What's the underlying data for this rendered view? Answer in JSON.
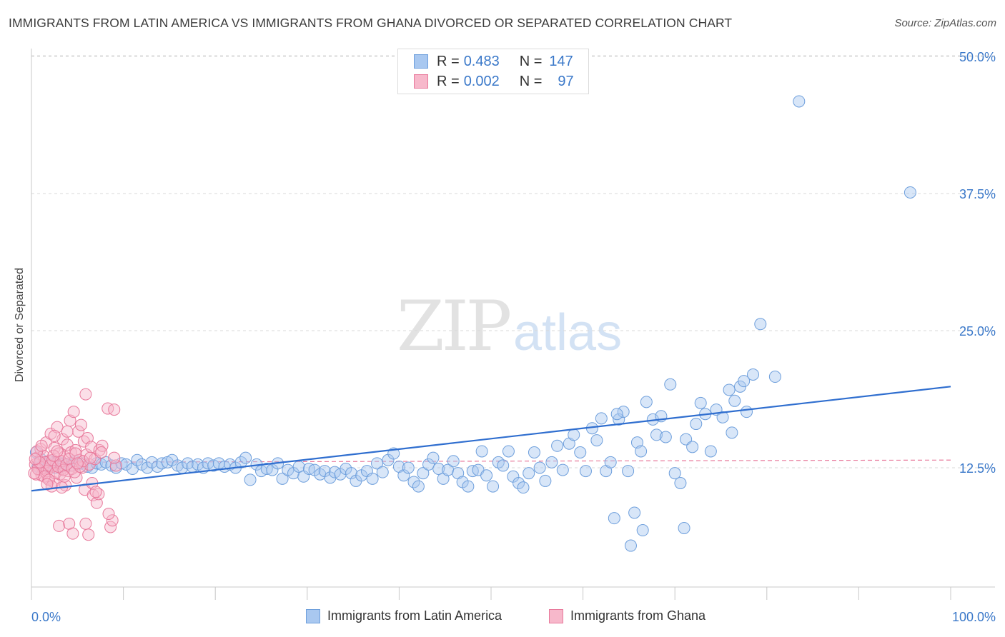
{
  "title": "IMMIGRANTS FROM LATIN AMERICA VS IMMIGRANTS FROM GHANA DIVORCED OR SEPARATED CORRELATION CHART",
  "source": "Source: ZipAtlas.com",
  "watermark": {
    "zip": "ZIP",
    "atlas": "atlas"
  },
  "legend": {
    "rows": [
      {
        "r_label": "R = ",
        "r_value": "0.483",
        "n_label": "N = ",
        "n_value": "147",
        "color": "#a9c8f0",
        "border": "#6e9fdc"
      },
      {
        "r_label": "R = ",
        "r_value": "0.002",
        "n_label": "N = ",
        "n_value": "97",
        "color": "#f7b8cb",
        "border": "#e8799b"
      }
    ]
  },
  "bottom_legend": [
    {
      "label": "Immigrants from Latin America",
      "color": "#a9c8f0",
      "border": "#6e9fdc"
    },
    {
      "label": "Immigrants from Ghana",
      "color": "#f7b8cb",
      "border": "#e8799b"
    }
  ],
  "chart_data": {
    "type": "scatter",
    "title": "IMMIGRANTS FROM LATIN AMERICA VS IMMIGRANTS FROM GHANA DIVORCED OR SEPARATED CORRELATION CHART",
    "ylabel": "Divorced or Separated",
    "xlabel": "",
    "x_tick_labels": [
      "0.0%",
      "100.0%"
    ],
    "y_tick_labels": [
      "12.5%",
      "25.0%",
      "37.5%",
      "50.0%"
    ],
    "xlim": [
      0,
      100
    ],
    "ylim": [
      2.5,
      52
    ],
    "grid": "horizontal dashed",
    "legend_placement": "top-center",
    "colors": {
      "latin": "#6e9fdc",
      "ghana": "#e8799b",
      "latin_line": "#2f6ecf",
      "ghana_line": "#e8799b"
    },
    "series": [
      {
        "name": "Immigrants from Latin America",
        "r": 0.483,
        "n": 147,
        "trend": {
          "x": [
            0,
            100
          ],
          "y": [
            10.4,
            19.9
          ]
        },
        "points": [
          [
            0.5,
            13.9
          ],
          [
            0.7,
            12.6
          ],
          [
            0.9,
            12.9
          ],
          [
            1.0,
            13.3
          ],
          [
            1.2,
            12.7
          ],
          [
            1.5,
            12.8
          ],
          [
            1.8,
            12.6
          ],
          [
            2.0,
            13.1
          ],
          [
            2.3,
            12.9
          ],
          [
            2.6,
            12.5
          ],
          [
            2.9,
            13.0
          ],
          [
            3.2,
            12.6
          ],
          [
            3.5,
            12.9
          ],
          [
            3.9,
            12.8
          ],
          [
            4.3,
            12.7
          ],
          [
            4.7,
            13.1
          ],
          [
            5.1,
            12.8
          ],
          [
            5.6,
            12.9
          ],
          [
            6.1,
            12.6
          ],
          [
            6.6,
            12.5
          ],
          [
            7.1,
            12.9
          ],
          [
            7.6,
            12.8
          ],
          [
            8.1,
            13.0
          ],
          [
            8.7,
            12.7
          ],
          [
            9.2,
            12.5
          ],
          [
            9.8,
            12.9
          ],
          [
            10.3,
            12.8
          ],
          [
            11.0,
            12.4
          ],
          [
            11.5,
            13.2
          ],
          [
            12.0,
            12.8
          ],
          [
            12.6,
            12.5
          ],
          [
            13.1,
            13.0
          ],
          [
            13.7,
            12.6
          ],
          [
            14.2,
            12.9
          ],
          [
            14.8,
            13.0
          ],
          [
            15.3,
            13.2
          ],
          [
            15.9,
            12.7
          ],
          [
            16.4,
            12.5
          ],
          [
            17.0,
            12.9
          ],
          [
            17.5,
            12.6
          ],
          [
            18.1,
            12.8
          ],
          [
            18.7,
            12.5
          ],
          [
            19.2,
            12.9
          ],
          [
            19.8,
            12.7
          ],
          [
            20.4,
            12.9
          ],
          [
            21.0,
            12.6
          ],
          [
            21.6,
            12.8
          ],
          [
            22.2,
            12.5
          ],
          [
            22.8,
            13.0
          ],
          [
            23.3,
            13.4
          ],
          [
            23.8,
            11.4
          ],
          [
            24.5,
            12.8
          ],
          [
            25.0,
            12.2
          ],
          [
            25.6,
            12.4
          ],
          [
            26.2,
            12.3
          ],
          [
            26.8,
            12.9
          ],
          [
            27.3,
            11.5
          ],
          [
            27.9,
            12.3
          ],
          [
            28.5,
            12.0
          ],
          [
            29.1,
            12.6
          ],
          [
            29.6,
            11.7
          ],
          [
            30.2,
            12.4
          ],
          [
            30.8,
            12.3
          ],
          [
            31.4,
            11.9
          ],
          [
            31.9,
            12.2
          ],
          [
            32.5,
            11.6
          ],
          [
            33.0,
            12.1
          ],
          [
            33.6,
            11.9
          ],
          [
            34.2,
            12.4
          ],
          [
            34.8,
            12.0
          ],
          [
            35.3,
            11.3
          ],
          [
            35.9,
            11.8
          ],
          [
            36.5,
            12.2
          ],
          [
            37.1,
            11.5
          ],
          [
            37.6,
            12.9
          ],
          [
            38.2,
            12.1
          ],
          [
            38.8,
            13.2
          ],
          [
            39.4,
            13.8
          ],
          [
            40.0,
            12.6
          ],
          [
            40.5,
            11.8
          ],
          [
            41.0,
            12.5
          ],
          [
            41.6,
            11.2
          ],
          [
            42.1,
            10.8
          ],
          [
            42.6,
            12.0
          ],
          [
            43.2,
            12.8
          ],
          [
            43.7,
            13.4
          ],
          [
            44.3,
            12.4
          ],
          [
            44.8,
            11.5
          ],
          [
            45.3,
            12.3
          ],
          [
            45.9,
            13.1
          ],
          [
            46.4,
            12.0
          ],
          [
            46.9,
            11.2
          ],
          [
            47.5,
            10.8
          ],
          [
            48.0,
            12.2
          ],
          [
            48.6,
            12.3
          ],
          [
            49.0,
            14.0
          ],
          [
            49.5,
            11.8
          ],
          [
            50.2,
            10.8
          ],
          [
            50.8,
            13.0
          ],
          [
            51.3,
            12.7
          ],
          [
            51.9,
            14.0
          ],
          [
            52.4,
            11.7
          ],
          [
            53.0,
            11.1
          ],
          [
            53.5,
            10.7
          ],
          [
            54.1,
            12.0
          ],
          [
            54.7,
            13.9
          ],
          [
            55.3,
            12.5
          ],
          [
            55.9,
            11.3
          ],
          [
            56.6,
            13.0
          ],
          [
            57.2,
            14.5
          ],
          [
            57.8,
            12.3
          ],
          [
            58.5,
            14.7
          ],
          [
            59.0,
            15.5
          ],
          [
            59.7,
            13.9
          ],
          [
            60.3,
            12.2
          ],
          [
            61.0,
            16.1
          ],
          [
            61.5,
            15.0
          ],
          [
            62.0,
            17.0
          ],
          [
            62.5,
            12.2
          ],
          [
            63.0,
            13.0
          ],
          [
            63.4,
            7.9
          ],
          [
            63.9,
            16.9
          ],
          [
            64.4,
            17.6
          ],
          [
            64.9,
            12.2
          ],
          [
            65.2,
            5.4
          ],
          [
            65.6,
            8.4
          ],
          [
            65.9,
            14.8
          ],
          [
            66.3,
            14.0
          ],
          [
            66.9,
            18.5
          ],
          [
            67.6,
            16.9
          ],
          [
            68.0,
            15.5
          ],
          [
            68.5,
            17.2
          ],
          [
            69.0,
            15.3
          ],
          [
            69.5,
            20.1
          ],
          [
            70.0,
            12.0
          ],
          [
            70.6,
            11.1
          ],
          [
            71.2,
            15.1
          ],
          [
            71.9,
            14.4
          ],
          [
            72.3,
            16.5
          ],
          [
            72.8,
            18.4
          ],
          [
            73.3,
            17.4
          ],
          [
            73.9,
            14.0
          ],
          [
            74.5,
            17.8
          ],
          [
            75.2,
            17.1
          ],
          [
            75.9,
            19.6
          ],
          [
            76.5,
            18.6
          ],
          [
            77.1,
            19.9
          ],
          [
            77.8,
            17.6
          ],
          [
            78.5,
            21.0
          ],
          [
            79.3,
            25.6
          ],
          [
            80.9,
            20.8
          ],
          [
            77.5,
            20.4
          ],
          [
            83.5,
            45.9
          ],
          [
            95.6,
            37.6
          ],
          [
            63.7,
            17.4
          ],
          [
            66.5,
            6.8
          ],
          [
            71.0,
            7.0
          ],
          [
            76.2,
            15.7
          ]
        ]
      },
      {
        "name": "Immigrants from Ghana",
        "r": 0.002,
        "n": 97,
        "trend": {
          "x": [
            0,
            100
          ],
          "y": [
            13.0,
            13.2
          ]
        },
        "points": [
          [
            0.4,
            12.8
          ],
          [
            0.6,
            13.4
          ],
          [
            0.8,
            12.3
          ],
          [
            1.0,
            14.2
          ],
          [
            1.1,
            11.8
          ],
          [
            1.3,
            13.6
          ],
          [
            1.5,
            12.1
          ],
          [
            1.6,
            14.8
          ],
          [
            1.8,
            11.5
          ],
          [
            1.9,
            13.1
          ],
          [
            2.1,
            15.6
          ],
          [
            2.2,
            12.6
          ],
          [
            2.4,
            11.2
          ],
          [
            2.5,
            14.3
          ],
          [
            2.7,
            12.9
          ],
          [
            2.8,
            16.2
          ],
          [
            3.0,
            13.8
          ],
          [
            3.1,
            11.9
          ],
          [
            3.3,
            12.4
          ],
          [
            3.4,
            15.1
          ],
          [
            3.6,
            13.5
          ],
          [
            3.7,
            10.9
          ],
          [
            3.9,
            14.6
          ],
          [
            4.0,
            12.2
          ],
          [
            4.2,
            16.8
          ],
          [
            4.3,
            13.9
          ],
          [
            4.5,
            12.7
          ],
          [
            4.6,
            17.6
          ],
          [
            4.8,
            14.1
          ],
          [
            4.9,
            11.6
          ],
          [
            5.1,
            15.8
          ],
          [
            5.2,
            13.2
          ],
          [
            5.4,
            16.4
          ],
          [
            5.5,
            12.5
          ],
          [
            5.7,
            14.9
          ],
          [
            5.8,
            10.5
          ],
          [
            6.0,
            13.7
          ],
          [
            6.1,
            15.2
          ],
          [
            6.3,
            12.8
          ],
          [
            6.5,
            14.4
          ],
          [
            6.7,
            10.0
          ],
          [
            6.9,
            13.3
          ],
          [
            7.1,
            9.3
          ],
          [
            7.3,
            10.1
          ],
          [
            5.9,
            19.2
          ],
          [
            3.0,
            7.2
          ],
          [
            4.1,
            7.4
          ],
          [
            5.9,
            7.4
          ],
          [
            6.2,
            6.4
          ],
          [
            4.5,
            6.5
          ],
          [
            8.6,
            7.1
          ],
          [
            8.3,
            17.9
          ],
          [
            9.0,
            17.8
          ],
          [
            8.8,
            7.7
          ],
          [
            8.4,
            8.3
          ],
          [
            7.4,
            14.1
          ],
          [
            7.7,
            14.5
          ],
          [
            9.2,
            12.7
          ],
          [
            9.0,
            13.4
          ],
          [
            1.2,
            12.5
          ],
          [
            1.5,
            13.0
          ],
          [
            1.7,
            12.2
          ],
          [
            2.0,
            12.7
          ],
          [
            2.3,
            13.2
          ],
          [
            2.6,
            12.0
          ],
          [
            2.9,
            12.6
          ],
          [
            3.2,
            13.1
          ],
          [
            3.5,
            12.3
          ],
          [
            3.8,
            12.8
          ],
          [
            4.1,
            13.3
          ],
          [
            4.4,
            12.4
          ],
          [
            0.5,
            11.9
          ],
          [
            0.7,
            12.4
          ],
          [
            0.9,
            13.0
          ],
          [
            1.4,
            11.7
          ],
          [
            1.9,
            11.4
          ],
          [
            2.4,
            13.6
          ],
          [
            3.6,
            11.7
          ],
          [
            4.7,
            12.1
          ],
          [
            5.3,
            12.6
          ],
          [
            5.6,
            13.1
          ],
          [
            0.6,
            14.0
          ],
          [
            1.1,
            14.5
          ],
          [
            2.5,
            15.4
          ],
          [
            3.9,
            15.8
          ],
          [
            2.2,
            10.8
          ],
          [
            3.3,
            10.7
          ],
          [
            1.7,
            11.0
          ],
          [
            4.8,
            13.8
          ],
          [
            0.3,
            12.0
          ],
          [
            0.4,
            13.3
          ],
          [
            6.6,
            11.1
          ],
          [
            7.0,
            10.3
          ],
          [
            5.0,
            12.9
          ],
          [
            6.4,
            13.4
          ],
          [
            7.6,
            13.9
          ],
          [
            2.8,
            14.0
          ]
        ]
      }
    ]
  }
}
